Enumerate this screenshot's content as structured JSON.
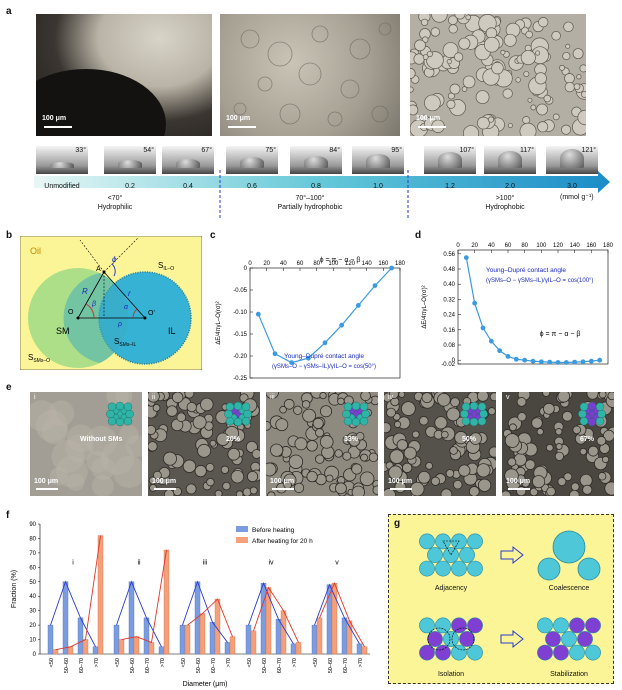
{
  "panels": {
    "a": "a",
    "b": "b",
    "c": "c",
    "d": "d",
    "e": "e",
    "f": "f",
    "g": "g"
  },
  "panel_a": {
    "scale_labels": [
      "100 μm",
      "100 μm",
      "100 μm"
    ],
    "angles": [
      "33°",
      "54°",
      "67°",
      "75°",
      "84°",
      "95°",
      "107°",
      "117°",
      "121°"
    ],
    "ticks": [
      "Unmodified",
      "0.2",
      "0.4",
      "0.6",
      "0.8",
      "1.0",
      "1.2",
      "2.0",
      "3.0"
    ],
    "unit": "(mmol g⁻¹)",
    "regions": [
      {
        "range": "<70°",
        "name": "Hydrophilic"
      },
      {
        "range": "70°–100°",
        "name": "Partially hydrophobic"
      },
      {
        "range": ">100°",
        "name": "Hydrophobic"
      }
    ]
  },
  "panel_b": {
    "oil": "Oil",
    "s_il_o": "S",
    "s_il_o_sub": "IL–O",
    "sm": "SM",
    "il": "IL",
    "s_sms_o": "S",
    "s_sms_o_sub": "SMs–O",
    "s_sms_il": "S",
    "s_sms_il_sub": "SMs–IL",
    "A": "A",
    "O": "O",
    "O2": "O'",
    "R": "R",
    "r": "r",
    "beta": "β",
    "alpha": "α",
    "rho": "ρ",
    "phi": "ϕ"
  },
  "chart_data": [
    {
      "type": "line",
      "panel": "c",
      "x": [
        10,
        30,
        50,
        70,
        90,
        110,
        130,
        150,
        170
      ],
      "y": [
        -0.105,
        -0.195,
        -0.215,
        -0.205,
        -0.17,
        -0.13,
        -0.085,
        -0.04,
        0.0
      ],
      "xlim": [
        0,
        180
      ],
      "ylim": [
        -0.25,
        0.0
      ],
      "xticks": [
        "0",
        "20",
        "40",
        "60",
        "80",
        "100",
        "120",
        "140",
        "160",
        "180"
      ],
      "yticks": [
        "0",
        "-0.05",
        "-0.10",
        "-0.15",
        "-0.20",
        "-0.25"
      ],
      "ylabel": "ΔE/4πγL–O(rσ)²",
      "annotation_top": "ϕ = π − α − β",
      "annotation_title": "Young–Dupré contact angle",
      "annotation_formula": "(γSMs–O − γSMs–IL)/γIL–O = cos(50°)"
    },
    {
      "type": "line",
      "panel": "d",
      "x": [
        10,
        20,
        30,
        40,
        50,
        60,
        70,
        80,
        90,
        100,
        110,
        120,
        130,
        140,
        150,
        160,
        170
      ],
      "y": [
        0.54,
        0.3,
        0.17,
        0.1,
        0.05,
        0.02,
        0.005,
        0.0,
        -0.005,
        -0.008,
        -0.01,
        -0.012,
        -0.012,
        -0.01,
        -0.008,
        -0.005,
        0.0
      ],
      "xlim": [
        0,
        180
      ],
      "ylim": [
        -0.02,
        0.58
      ],
      "xticks": [
        "0",
        "20",
        "40",
        "60",
        "80",
        "100",
        "120",
        "140",
        "160",
        "180"
      ],
      "yticks": [
        "0.56",
        "0.48",
        "0.40",
        "0.32",
        "0.24",
        "0.16",
        "0.08",
        "0",
        "-0.02"
      ],
      "ylabel": "ΔE/4πγL–O(rσ)²",
      "annotation_title": "Young–Dupré contact angle",
      "annotation_formula": "(γSMs–O − γSMs–IL)/γIL–O = cos(100°)",
      "annotation_bottom": "ϕ = π − α − β"
    },
    {
      "type": "bar",
      "panel": "f",
      "groups": [
        "i",
        "ii",
        "iii",
        "iv",
        "v"
      ],
      "categories": [
        "<50",
        "50–60",
        "60–70",
        ">70"
      ],
      "series": [
        {
          "name": "Before heating",
          "color": "#7b9de0",
          "values": [
            [
              20,
              50,
              25,
              5
            ],
            [
              20,
              50,
              25,
              5
            ],
            [
              20,
              50,
              22,
              8
            ],
            [
              20,
              49,
              24,
              7
            ],
            [
              20,
              48,
              25,
              7
            ]
          ]
        },
        {
          "name": "After heating for 20 h",
          "color": "#f4a07a",
          "values": [
            [
              3,
              5,
              10,
              82
            ],
            [
              10,
              12,
              8,
              72
            ],
            [
              20,
              28,
              38,
              12
            ],
            [
              16,
              46,
              30,
              8
            ],
            [
              25,
              49,
              23,
              5
            ]
          ]
        }
      ],
      "ylim": [
        0,
        90
      ],
      "yticks": [
        "0",
        "10",
        "20",
        "30",
        "40",
        "50",
        "60",
        "70",
        "80",
        "90"
      ],
      "ylabel": "Fraction (%)",
      "xlabel": "Diameter (μm)",
      "legend": "top-right"
    }
  ],
  "panel_e": {
    "labels": [
      "i",
      "ii",
      "iii",
      "iv",
      "v"
    ],
    "texts": [
      "Without SMs",
      "20%",
      "33%",
      "50%",
      "67%"
    ],
    "scale": "100 μm"
  },
  "panel_g": {
    "adjacency": "Adjacency",
    "coalescence": "Coalescence",
    "isolation": "Isolation",
    "stabilization": "Stabilization"
  }
}
